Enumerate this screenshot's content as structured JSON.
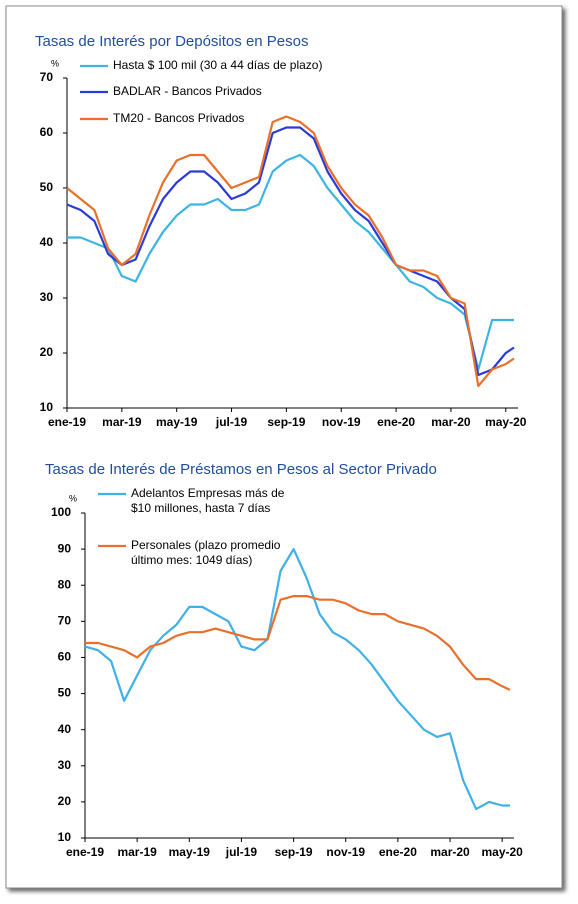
{
  "chart_data": [
    {
      "type": "line",
      "title": "Tasas de Interés por Depósitos en Pesos",
      "y_unit": "%",
      "x": [
        0,
        0.5,
        1,
        1.5,
        2,
        2.5,
        3,
        3.5,
        4,
        4.5,
        5,
        5.5,
        6,
        6.5,
        7,
        7.5,
        8,
        8.5,
        9,
        9.5,
        10,
        10.5,
        11,
        11.5,
        12,
        12.5,
        13,
        13.5,
        14,
        14.5,
        15,
        15.5,
        16,
        16.3
      ],
      "xlim": [
        0,
        16.3
      ],
      "xticks": [
        {
          "value": 0,
          "label": "ene-19"
        },
        {
          "value": 2,
          "label": "mar-19"
        },
        {
          "value": 4,
          "label": "may-19"
        },
        {
          "value": 6,
          "label": "jul-19"
        },
        {
          "value": 8,
          "label": "sep-19"
        },
        {
          "value": 10,
          "label": "nov-19"
        },
        {
          "value": 12,
          "label": "ene-20"
        },
        {
          "value": 14,
          "label": "mar-20"
        },
        {
          "value": 16,
          "label": "may-20"
        }
      ],
      "ylim": [
        10,
        70
      ],
      "yticks": [
        10,
        20,
        30,
        40,
        50,
        60,
        70
      ],
      "series": [
        {
          "name": "Hasta $ 100 mil (30 a 44 días de plazo)",
          "color": "#3db5e3",
          "values": [
            41,
            41,
            40,
            39,
            34,
            33,
            38,
            42,
            45,
            47,
            47,
            48,
            46,
            46,
            47,
            53,
            55,
            56,
            54,
            50,
            47,
            44,
            42,
            39,
            36,
            33,
            32,
            30,
            29,
            27,
            17,
            26,
            26,
            26
          ]
        },
        {
          "name": "BADLAR - Bancos Privados",
          "color": "#2b3bd6",
          "values": [
            47,
            46,
            44,
            38,
            36,
            37,
            43,
            48,
            51,
            53,
            53,
            51,
            48,
            49,
            51,
            60,
            61,
            61,
            59,
            53,
            49,
            46,
            44,
            40,
            36,
            35,
            34,
            33,
            30,
            28,
            16,
            17,
            20,
            21
          ]
        },
        {
          "name": "TM20 - Bancos Privados",
          "color": "#e8702a",
          "values": [
            50,
            48,
            46,
            39,
            36,
            38,
            45,
            51,
            55,
            56,
            56,
            53,
            50,
            51,
            52,
            62,
            63,
            62,
            60,
            54,
            50,
            47,
            45,
            41,
            36,
            35,
            35,
            34,
            30,
            29,
            14,
            17,
            18,
            19
          ]
        }
      ]
    },
    {
      "type": "line",
      "title": "Tasas de Interés de Préstamos en Pesos al Sector Privado",
      "y_unit": "%",
      "x": [
        0,
        0.5,
        1,
        1.5,
        2,
        2.5,
        3,
        3.5,
        4,
        4.5,
        5,
        5.5,
        6,
        6.5,
        7,
        7.5,
        8,
        8.5,
        9,
        9.5,
        10,
        10.5,
        11,
        11.5,
        12,
        12.5,
        13,
        13.5,
        14,
        14.5,
        15,
        15.5,
        16,
        16.3
      ],
      "xlim": [
        0,
        16.3
      ],
      "xticks": [
        {
          "value": 0,
          "label": "ene-19"
        },
        {
          "value": 2,
          "label": "mar-19"
        },
        {
          "value": 4,
          "label": "may-19"
        },
        {
          "value": 6,
          "label": "jul-19"
        },
        {
          "value": 8,
          "label": "sep-19"
        },
        {
          "value": 10,
          "label": "nov-19"
        },
        {
          "value": 12,
          "label": "ene-20"
        },
        {
          "value": 14,
          "label": "mar-20"
        },
        {
          "value": 16,
          "label": "may-20"
        }
      ],
      "ylim": [
        10,
        100
      ],
      "yticks": [
        10,
        20,
        30,
        40,
        50,
        60,
        70,
        80,
        90,
        100
      ],
      "series": [
        {
          "name": "Adelantos Empresas más de $10 millones, hasta 7 días",
          "color": "#3fb0e8",
          "values": [
            63,
            62,
            59,
            48,
            55,
            62,
            66,
            69,
            74,
            74,
            72,
            70,
            63,
            62,
            65,
            84,
            90,
            82,
            72,
            67,
            65,
            62,
            58,
            53,
            48,
            44,
            40,
            38,
            39,
            26,
            18,
            20,
            19,
            19
          ]
        },
        {
          "name": "Personales (plazo promedio último mes: 1049 días)",
          "color": "#e8702a",
          "values": [
            64,
            64,
            63,
            62,
            60,
            63,
            64,
            66,
            67,
            67,
            68,
            67,
            66,
            65,
            65,
            76,
            77,
            77,
            76,
            76,
            75,
            73,
            72,
            72,
            70,
            69,
            68,
            66,
            63,
            58,
            54,
            54,
            52,
            51
          ]
        }
      ]
    }
  ]
}
